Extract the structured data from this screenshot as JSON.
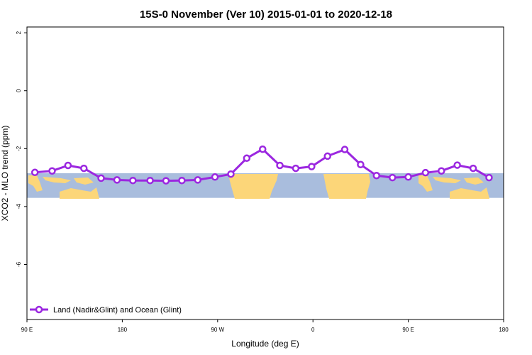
{
  "chart_data": {
    "type": "line",
    "title": "15S-0 November (Ver 10)   2015-01-01 to 2020-12-18",
    "xlabel": "Longitude (deg E)",
    "ylabel": "XCO2 - MLO trend (ppm)",
    "xlim": [
      90,
      450
    ],
    "ylim": [
      -7.9,
      2.2
    ],
    "x_ticks": [
      {
        "value": 90,
        "label": "90 E"
      },
      {
        "value": 162,
        "label": "180"
      },
      {
        "value": 234,
        "label": "90 W"
      },
      {
        "value": 306,
        "label": "0"
      },
      {
        "value": 378,
        "label": "90 E"
      },
      {
        "value": 450,
        "label": "180"
      }
    ],
    "y_ticks": [
      {
        "value": 2,
        "label": "2"
      },
      {
        "value": 0,
        "label": "0"
      },
      {
        "value": -2,
        "label": "-2"
      },
      {
        "value": -4,
        "label": "-4"
      },
      {
        "value": -6,
        "label": "-6"
      }
    ],
    "grid": false,
    "background_map": {
      "lat_band": "15S-0",
      "y_range": [
        -3.7,
        -2.85
      ],
      "ocean_color": "#a9bddd",
      "land_color": "#fcd679"
    },
    "legend": {
      "position": "bottom-left"
    },
    "series": [
      {
        "name": "Land (Nadir&Glint) and Ocean (Glint)",
        "color": "#9b27e0",
        "x": [
          96,
          109,
          121,
          133,
          146,
          158,
          170,
          183,
          195,
          207,
          219,
          232,
          244,
          256,
          268,
          281,
          293,
          305,
          317,
          330,
          342,
          354,
          366,
          378,
          391,
          403,
          415,
          427,
          439
        ],
        "y": [
          -2.82,
          -2.77,
          -2.58,
          -2.68,
          -3.02,
          -3.08,
          -3.1,
          -3.1,
          -3.11,
          -3.1,
          -3.08,
          -2.98,
          -2.88,
          -2.33,
          -2.02,
          -2.58,
          -2.68,
          -2.62,
          -2.26,
          -2.03,
          -2.55,
          -2.93,
          -3.0,
          -2.98,
          -2.83,
          -2.77,
          -2.57,
          -2.68,
          -3.0
        ]
      }
    ]
  }
}
